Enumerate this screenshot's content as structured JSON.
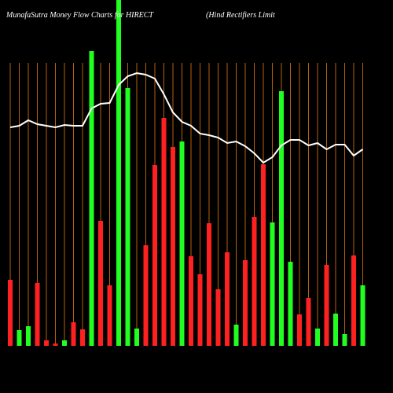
{
  "chart_data": {
    "type": "bar-line",
    "title": "MunafaSutra  Money Flow  Charts for HIRECT",
    "subtitle": "(Hind Rectifiers Limit",
    "categories": [
      null,
      null,
      null,
      null,
      null,
      null,
      null,
      null,
      null,
      null,
      null,
      null,
      null,
      null,
      null,
      null,
      null,
      null,
      null,
      null,
      null,
      null,
      null,
      null,
      null,
      null,
      null,
      null,
      null,
      null,
      null,
      null,
      null,
      null,
      null,
      null,
      null,
      null,
      null,
      null
    ],
    "values": [
      84,
      20,
      25,
      80,
      7,
      3,
      7,
      30,
      21,
      375,
      159,
      77,
      440,
      328,
      22,
      128,
      230,
      290,
      253,
      260,
      114,
      91,
      156,
      72,
      119,
      27,
      109,
      164,
      231,
      157,
      324,
      107,
      40,
      61,
      22,
      103,
      41,
      15,
      115,
      77
    ],
    "bar_colors": [
      "#ff2020",
      "#20ff20",
      "#20ff20",
      "#ff2020",
      "#ff2020",
      "#ff2020",
      "#20ff20",
      "#ff2020",
      "#ff2020",
      "#20ff20",
      "#ff2020",
      "#ff2020",
      "#20ff20",
      "#20ff20",
      "#20ff20",
      "#ff2020",
      "#ff2020",
      "#ff2020",
      "#ff2020",
      "#20ff20",
      "#ff2020",
      "#ff2020",
      "#ff2020",
      "#ff2020",
      "#ff2020",
      "#20ff20",
      "#ff2020",
      "#ff2020",
      "#ff2020",
      "#20ff20",
      "#20ff20",
      "#20ff20",
      "#ff2020",
      "#ff2020",
      "#20ff20",
      "#ff2020",
      "#20ff20",
      "#20ff20",
      "#ff2020",
      "#20ff20"
    ],
    "line": {
      "color": "#ffffff",
      "values": [
        278,
        280,
        287,
        282,
        280,
        278,
        281,
        280,
        280,
        302,
        308,
        309,
        332,
        343,
        347,
        345,
        340,
        320,
        297,
        285,
        280,
        270,
        268,
        265,
        258,
        260,
        254,
        245,
        233,
        240,
        255,
        262,
        262,
        255,
        258,
        250,
        256,
        256,
        242,
        250
      ]
    },
    "ylim": [
      0,
      440
    ]
  }
}
